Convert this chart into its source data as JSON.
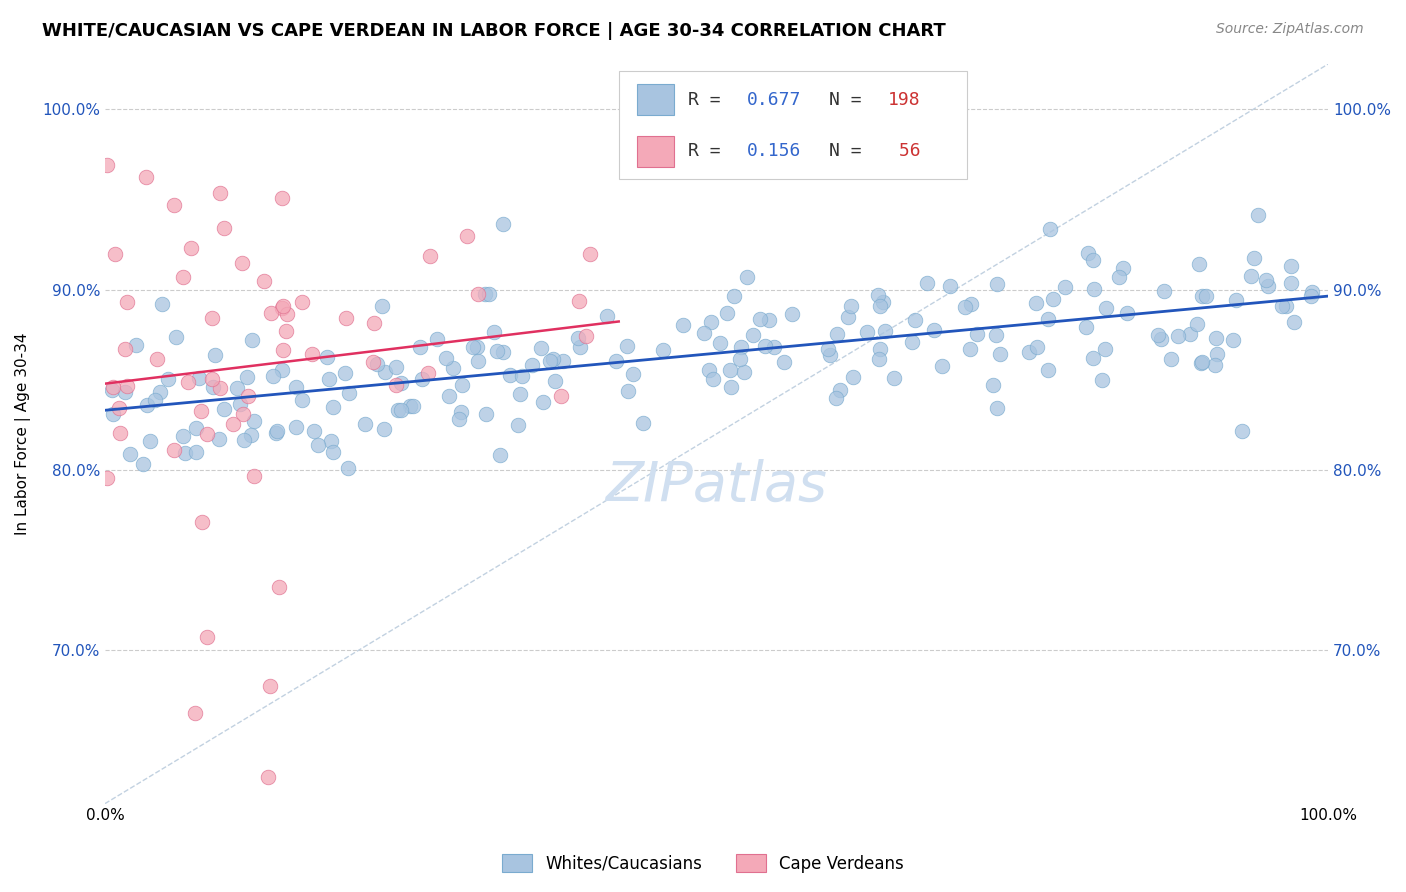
{
  "title": "WHITE/CAUCASIAN VS CAPE VERDEAN IN LABOR FORCE | AGE 30-34 CORRELATION CHART",
  "source": "Source: ZipAtlas.com",
  "ylabel": "In Labor Force | Age 30-34",
  "xlim": [
    0.0,
    1.0
  ],
  "ylim": [
    0.615,
    1.025
  ],
  "yticks": [
    0.7,
    0.8,
    0.9,
    1.0
  ],
  "ytick_labels": [
    "70.0%",
    "80.0%",
    "90.0%",
    "100.0%"
  ],
  "blue_color": "#A8C4E0",
  "blue_edge": "#7AABCF",
  "pink_color": "#F4A9B8",
  "pink_edge": "#E07090",
  "blue_line_color": "#2255BB",
  "pink_line_color": "#E03060",
  "dashed_line_color": "#BBCCDD",
  "watermark_color": "#D0DFF0",
  "blue_R": 0.677,
  "blue_N": 198,
  "pink_R": 0.156,
  "pink_N": 56,
  "seed": 42,
  "title_fontsize": 13,
  "axis_label_fontsize": 11,
  "tick_fontsize": 11,
  "legend_fontsize": 13,
  "source_fontsize": 10,
  "watermark_fontsize": 40
}
